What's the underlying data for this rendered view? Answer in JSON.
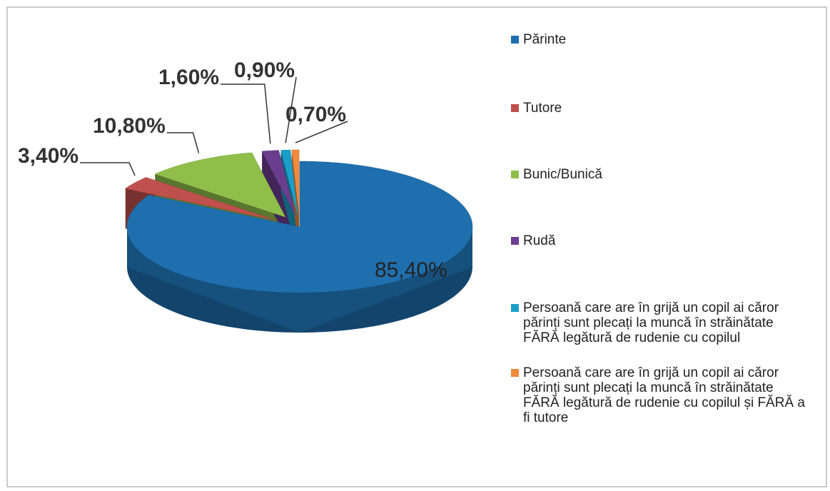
{
  "chart_data": {
    "type": "pie3d",
    "categories": [
      "Părinte",
      "Tutore",
      "Bunic/Bunică",
      "Rudă",
      "Persoană care are în grijă un copil ai căror părinți sunt plecați la muncă în străinătate FĂRĂ legătură de rudenie cu copilul",
      "Persoană care are în grijă un copil ai căror părinți sunt plecați la muncă în străinătate FĂRĂ legătură de rudenie cu copilul și FĂRĂ a fi tutore"
    ],
    "values": [
      85.4,
      3.4,
      10.8,
      1.6,
      0.9,
      0.7
    ],
    "value_labels": [
      "85,40%",
      "3,40%",
      "10,80%",
      "1,60%",
      "0,90%",
      "0,70%"
    ],
    "colors": [
      "#1f6fae",
      "#c0504d",
      "#8fbf4a",
      "#6a3d8f",
      "#1aa0c8",
      "#f08a3c"
    ],
    "legend": "right"
  }
}
